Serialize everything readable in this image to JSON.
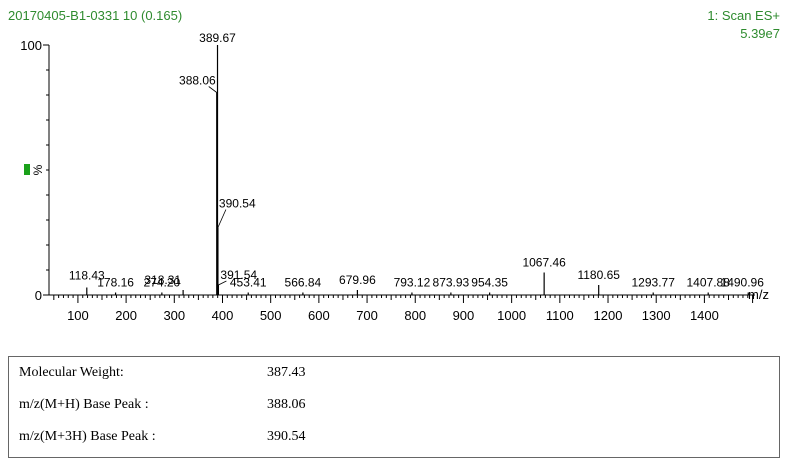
{
  "header": {
    "sample_id": "20170405-B1-0331 10 (0.165)",
    "scan_mode": "1: Scan ES+",
    "intensity": "5.39e7"
  },
  "colors": {
    "header_text": "#2e8b2e",
    "marker": "#1aa11a",
    "axis": "#000000"
  },
  "chart_data": {
    "type": "bar",
    "xlabel": "m/z",
    "ylabel": "%",
    "xlim": [
      40,
      1505
    ],
    "ylim": [
      0,
      100
    ],
    "x_ticks": [
      100,
      200,
      300,
      400,
      500,
      600,
      700,
      800,
      900,
      1000,
      1100,
      1200,
      1300,
      1400
    ],
    "y_ticks": [
      0,
      100
    ],
    "peaks": [
      {
        "mz": 118.43,
        "intensity": 3,
        "label": "118.43"
      },
      {
        "mz": 178.16,
        "intensity": 1,
        "label": "178.16"
      },
      {
        "mz": 274.2,
        "intensity": 1,
        "label": "274.20"
      },
      {
        "mz": 318.31,
        "intensity": 2,
        "label": "318.31"
      },
      {
        "mz": 388.06,
        "intensity": 81,
        "label": "388.06"
      },
      {
        "mz": 389.67,
        "intensity": 100,
        "label": "389.67"
      },
      {
        "mz": 390.54,
        "intensity": 27,
        "label": "390.54"
      },
      {
        "mz": 391.54,
        "intensity": 4,
        "label": "391.54"
      },
      {
        "mz": 453.41,
        "intensity": 1,
        "label": "453.41"
      },
      {
        "mz": 566.84,
        "intensity": 1,
        "label": "566.84"
      },
      {
        "mz": 679.96,
        "intensity": 2,
        "label": "679.96"
      },
      {
        "mz": 793.12,
        "intensity": 1,
        "label": "793.12"
      },
      {
        "mz": 873.93,
        "intensity": 1,
        "label": "873.93"
      },
      {
        "mz": 954.35,
        "intensity": 1,
        "label": "954.35"
      },
      {
        "mz": 1067.46,
        "intensity": 9,
        "label": "1067.46"
      },
      {
        "mz": 1180.65,
        "intensity": 4,
        "label": "1180.65"
      },
      {
        "mz": 1293.77,
        "intensity": 1,
        "label": "1293.77"
      },
      {
        "mz": 1407.88,
        "intensity": 1,
        "label": "1407.88"
      },
      {
        "mz": 1490.96,
        "intensity": 1,
        "label": "1490.96"
      }
    ]
  },
  "info": [
    {
      "label": "Molecular Weight:",
      "value": "387.43"
    },
    {
      "label": "m/z(M+H) Base Peak :",
      "value": "388.06"
    },
    {
      "label": "m/z(M+3H) Base Peak :",
      "value": "390.54"
    }
  ]
}
